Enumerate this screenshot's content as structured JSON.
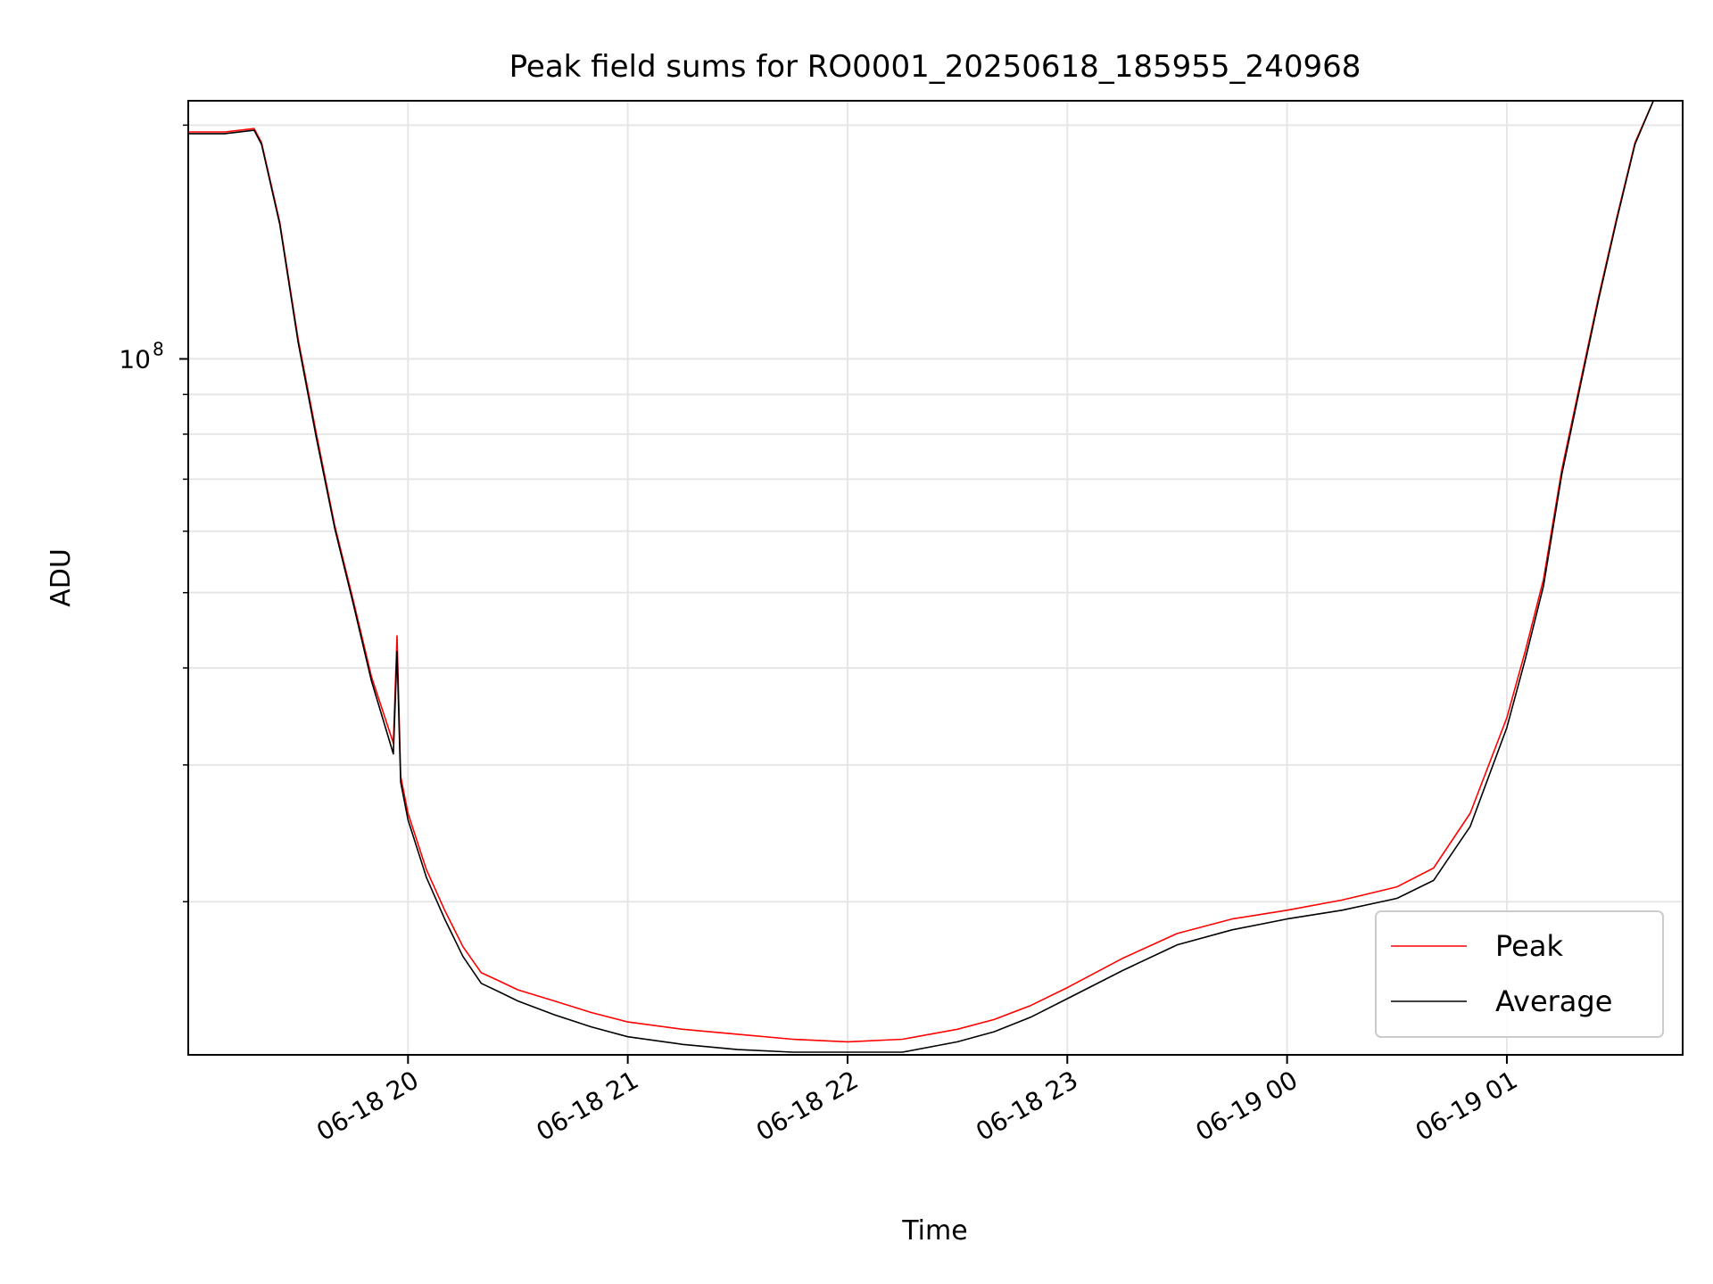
{
  "chart_data": {
    "type": "line",
    "title": "Peak field sums for RO0001_20250618_185955_240968",
    "xlabel": "Time",
    "ylabel": "ADU",
    "y_scale": "log",
    "grid": true,
    "legend_position": "lower-right",
    "xlim": [
      "2025-06-18 19:00",
      "2025-06-19 01:48"
    ],
    "ylim": [
      12700000,
      215000000
    ],
    "x_ticks": [
      {
        "value": "2025-06-18 20:00",
        "label": "06-18 20"
      },
      {
        "value": "2025-06-18 21:00",
        "label": "06-18 21"
      },
      {
        "value": "2025-06-18 22:00",
        "label": "06-18 22"
      },
      {
        "value": "2025-06-18 23:00",
        "label": "06-18 23"
      },
      {
        "value": "2025-06-19 00:00",
        "label": "06-19 00"
      },
      {
        "value": "2025-06-19 01:00",
        "label": "06-19 01"
      }
    ],
    "y_major_ticks": [
      {
        "value": 100000000,
        "label": "10",
        "exponent": "8"
      }
    ],
    "y_minor_ticks": [
      20000000,
      30000000,
      40000000,
      50000000,
      60000000,
      70000000,
      80000000,
      90000000,
      200000000
    ],
    "series": [
      {
        "name": "Peak",
        "color": "#ff0000",
        "x": [
          "2025-06-18 19:00",
          "2025-06-18 19:10",
          "2025-06-18 19:18",
          "2025-06-18 19:20",
          "2025-06-18 19:25",
          "2025-06-18 19:30",
          "2025-06-18 19:35",
          "2025-06-18 19:40",
          "2025-06-18 19:45",
          "2025-06-18 19:50",
          "2025-06-18 19:56",
          "2025-06-18 19:57",
          "2025-06-18 19:58",
          "2025-06-18 20:00",
          "2025-06-18 20:05",
          "2025-06-18 20:10",
          "2025-06-18 20:15",
          "2025-06-18 20:20",
          "2025-06-18 20:25",
          "2025-06-18 20:30",
          "2025-06-18 20:40",
          "2025-06-18 20:50",
          "2025-06-18 21:00",
          "2025-06-18 21:15",
          "2025-06-18 21:30",
          "2025-06-18 21:45",
          "2025-06-18 22:00",
          "2025-06-18 22:15",
          "2025-06-18 22:30",
          "2025-06-18 22:40",
          "2025-06-18 22:50",
          "2025-06-18 23:00",
          "2025-06-18 23:15",
          "2025-06-18 23:30",
          "2025-06-18 23:45",
          "2025-06-19 00:00",
          "2025-06-19 00:15",
          "2025-06-19 00:30",
          "2025-06-19 00:40",
          "2025-06-19 00:50",
          "2025-06-19 01:00",
          "2025-06-19 01:05",
          "2025-06-19 01:10",
          "2025-06-19 01:15",
          "2025-06-19 01:20",
          "2025-06-19 01:25",
          "2025-06-19 01:30",
          "2025-06-19 01:35",
          "2025-06-19 01:40",
          "2025-06-19 01:48"
        ],
        "values": [
          196000000,
          196000000,
          198000000,
          190000000,
          150000000,
          106000000,
          80000000,
          61000000,
          49000000,
          39000000,
          32000000,
          44000000,
          29000000,
          26000000,
          22000000,
          19500000,
          17500000,
          16200000,
          15800000,
          15400000,
          14900000,
          14400000,
          14000000,
          13700000,
          13500000,
          13300000,
          13200000,
          13300000,
          13700000,
          14100000,
          14700000,
          15500000,
          16900000,
          18200000,
          19000000,
          19500000,
          20100000,
          20900000,
          22100000,
          26000000,
          34500000,
          42000000,
          52000000,
          72000000,
          93000000,
          120000000,
          152000000,
          190000000,
          215000000,
          215000000
        ]
      },
      {
        "name": "Average",
        "color": "#000000",
        "x": [
          "2025-06-18 19:00",
          "2025-06-18 19:10",
          "2025-06-18 19:18",
          "2025-06-18 19:20",
          "2025-06-18 19:25",
          "2025-06-18 19:30",
          "2025-06-18 19:35",
          "2025-06-18 19:40",
          "2025-06-18 19:45",
          "2025-06-18 19:50",
          "2025-06-18 19:56",
          "2025-06-18 19:57",
          "2025-06-18 19:58",
          "2025-06-18 20:00",
          "2025-06-18 20:05",
          "2025-06-18 20:10",
          "2025-06-18 20:15",
          "2025-06-18 20:20",
          "2025-06-18 20:25",
          "2025-06-18 20:30",
          "2025-06-18 20:40",
          "2025-06-18 20:50",
          "2025-06-18 21:00",
          "2025-06-18 21:15",
          "2025-06-18 21:30",
          "2025-06-18 21:45",
          "2025-06-18 22:00",
          "2025-06-18 22:15",
          "2025-06-18 22:30",
          "2025-06-18 22:40",
          "2025-06-18 22:50",
          "2025-06-18 23:00",
          "2025-06-18 23:15",
          "2025-06-18 23:30",
          "2025-06-18 23:45",
          "2025-06-19 00:00",
          "2025-06-19 00:15",
          "2025-06-19 00:30",
          "2025-06-19 00:40",
          "2025-06-19 00:50",
          "2025-06-19 01:00",
          "2025-06-19 01:05",
          "2025-06-19 01:10",
          "2025-06-19 01:15",
          "2025-06-19 01:20",
          "2025-06-19 01:25",
          "2025-06-19 01:30",
          "2025-06-19 01:35",
          "2025-06-19 01:40",
          "2025-06-19 01:48"
        ],
        "values": [
          195000000,
          195000000,
          197000000,
          189000000,
          149000000,
          105000000,
          79000000,
          60500000,
          48500000,
          38500000,
          31000000,
          42000000,
          28500000,
          25500000,
          21500000,
          19000000,
          17000000,
          15700000,
          15300000,
          14900000,
          14300000,
          13800000,
          13400000,
          13100000,
          12900000,
          12800000,
          12800000,
          12800000,
          13200000,
          13600000,
          14200000,
          15000000,
          16300000,
          17600000,
          18400000,
          19000000,
          19500000,
          20200000,
          21300000,
          25000000,
          33500000,
          41000000,
          51000000,
          71000000,
          92000000,
          119000000,
          151000000,
          189000000,
          215000000,
          215000000
        ]
      }
    ]
  }
}
